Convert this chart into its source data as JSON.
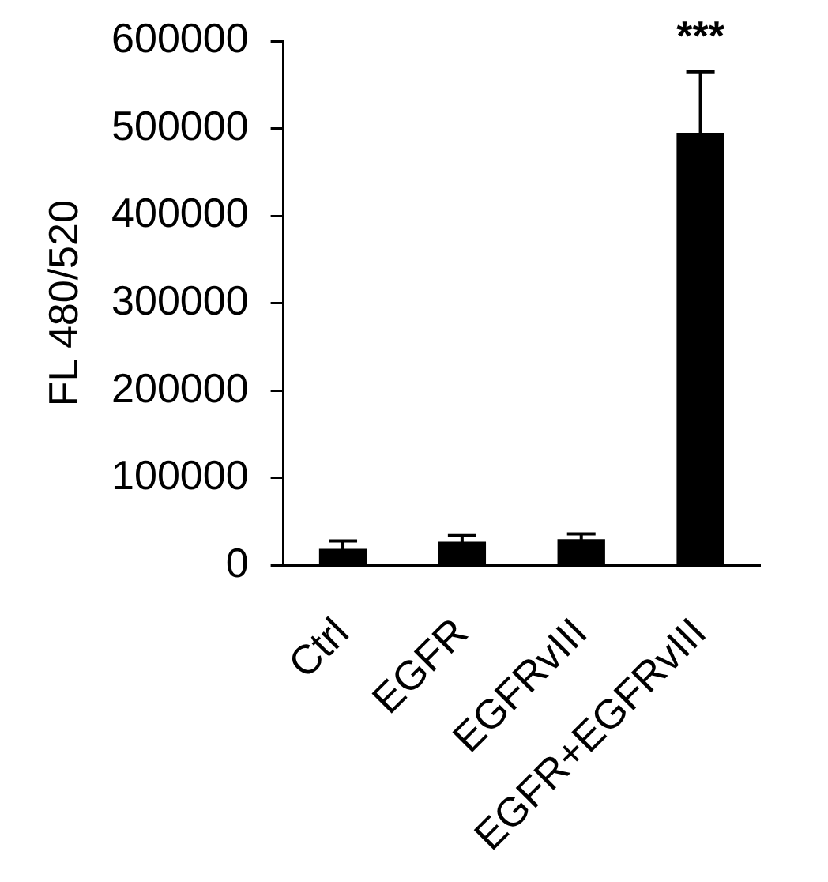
{
  "chart_data": {
    "type": "bar",
    "categories": [
      "Ctrl",
      "EGFR",
      "EGFRvIII",
      "EGFR+EGFRvIII"
    ],
    "values": [
      19000,
      27000,
      30000,
      495000
    ],
    "errors": [
      9000,
      7000,
      6000,
      70000
    ],
    "color": "#000000",
    "ylabel": "FL 480/520",
    "ylim": [
      0,
      600000
    ],
    "yticks": [
      0,
      100000,
      200000,
      300000,
      400000,
      500000,
      600000
    ],
    "grid": false,
    "legend": false,
    "annotations": [
      {
        "text": "***",
        "x": "EGFR+EGFRvIII",
        "y": 565000
      }
    ]
  }
}
